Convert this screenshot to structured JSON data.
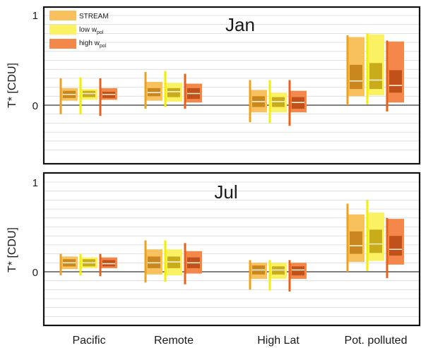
{
  "chart_data": {
    "type": "box",
    "categories": [
      "Pacific",
      "Remote",
      "High Lat",
      "Pot. polluted"
    ],
    "ylabel": "T* [CDU]",
    "ylim": [
      -0.5,
      1.0
    ],
    "yticks": [
      0,
      1
    ],
    "minor_grid_step": 0.1,
    "legend": {
      "placement": "top-left",
      "entries": [
        {
          "key": "stream",
          "label": "STREAM",
          "sub": ""
        },
        {
          "key": "low",
          "label": "low w",
          "sub": "pol"
        },
        {
          "key": "high",
          "label": "high w",
          "sub": "pol"
        }
      ]
    },
    "colors": {
      "stream": {
        "outer": "#f9c15e",
        "inner": "#c9871e",
        "whisker": "#eda21f"
      },
      "low": {
        "outer": "#fbf263",
        "inner": "#c9ac1a",
        "whisker": "#f2ee05"
      },
      "high": {
        "outer": "#f3884a",
        "inner": "#c0511a",
        "whisker": "#ea6019"
      },
      "median": "#f6f0d8",
      "zero_line": "#333333",
      "grid": "#d9d9d9"
    },
    "panels": [
      {
        "title": "Jan",
        "series": [
          {
            "key": "stream",
            "boxes": [
              {
                "min": -0.1,
                "p10": 0.05,
                "q1": 0.08,
                "median": 0.12,
                "q3": 0.16,
                "p90": 0.19,
                "max": 0.3
              },
              {
                "min": -0.04,
                "p10": 0.05,
                "q1": 0.1,
                "median": 0.14,
                "q3": 0.19,
                "p90": 0.26,
                "max": 0.37
              },
              {
                "min": -0.19,
                "p10": -0.08,
                "q1": -0.02,
                "median": 0.04,
                "q3": 0.1,
                "p90": 0.17,
                "max": 0.28
              },
              {
                "min": 0.0,
                "p10": 0.1,
                "q1": 0.18,
                "median": 0.27,
                "q3": 0.45,
                "p90": 0.76,
                "max": 0.78
              }
            ]
          },
          {
            "key": "low",
            "boxes": [
              {
                "min": -0.1,
                "p10": 0.06,
                "q1": 0.09,
                "median": 0.13,
                "q3": 0.16,
                "p90": 0.18,
                "max": 0.31
              },
              {
                "min": -0.02,
                "p10": 0.04,
                "q1": 0.09,
                "median": 0.15,
                "q3": 0.19,
                "p90": 0.25,
                "max": 0.38
              },
              {
                "min": -0.2,
                "p10": -0.08,
                "q1": -0.02,
                "median": 0.04,
                "q3": 0.09,
                "p90": 0.14,
                "max": 0.28
              },
              {
                "min": 0.01,
                "p10": 0.11,
                "q1": 0.18,
                "median": 0.28,
                "q3": 0.47,
                "p90": 0.79,
                "max": 0.8
              }
            ]
          },
          {
            "key": "high",
            "boxes": [
              {
                "min": -0.12,
                "p10": 0.06,
                "q1": 0.08,
                "median": 0.12,
                "q3": 0.15,
                "p90": 0.19,
                "max": 0.3
              },
              {
                "min": -0.04,
                "p10": 0.03,
                "q1": 0.07,
                "median": 0.13,
                "q3": 0.19,
                "p90": 0.24,
                "max": 0.35
              },
              {
                "min": -0.23,
                "p10": -0.08,
                "q1": -0.04,
                "median": 0.03,
                "q3": 0.09,
                "p90": 0.16,
                "max": 0.28
              },
              {
                "min": -0.07,
                "p10": 0.03,
                "q1": 0.14,
                "median": 0.22,
                "q3": 0.39,
                "p90": 0.71,
                "max": 0.72
              }
            ]
          }
        ]
      },
      {
        "title": "Jul",
        "series": [
          {
            "key": "stream",
            "boxes": [
              {
                "min": -0.04,
                "p10": 0.03,
                "q1": 0.06,
                "median": 0.1,
                "q3": 0.14,
                "p90": 0.17,
                "max": 0.2
              },
              {
                "min": -0.12,
                "p10": -0.03,
                "q1": 0.04,
                "median": 0.1,
                "q3": 0.17,
                "p90": 0.25,
                "max": 0.35
              },
              {
                "min": -0.2,
                "p10": -0.08,
                "q1": -0.03,
                "median": 0.02,
                "q3": 0.07,
                "p90": 0.1,
                "max": 0.13
              },
              {
                "min": 0.0,
                "p10": 0.11,
                "q1": 0.2,
                "median": 0.29,
                "q3": 0.45,
                "p90": 0.64,
                "max": 0.76
              }
            ]
          },
          {
            "key": "low",
            "boxes": [
              {
                "min": -0.04,
                "p10": 0.04,
                "q1": 0.06,
                "median": 0.1,
                "q3": 0.14,
                "p90": 0.16,
                "max": 0.2
              },
              {
                "min": -0.11,
                "p10": -0.04,
                "q1": 0.04,
                "median": 0.11,
                "q3": 0.17,
                "p90": 0.25,
                "max": 0.35
              },
              {
                "min": -0.21,
                "p10": -0.08,
                "q1": -0.03,
                "median": 0.02,
                "q3": 0.06,
                "p90": 0.1,
                "max": 0.13
              },
              {
                "min": 0.01,
                "p10": 0.12,
                "q1": 0.21,
                "median": 0.31,
                "q3": 0.47,
                "p90": 0.66,
                "max": 0.8
              }
            ]
          },
          {
            "key": "high",
            "boxes": [
              {
                "min": -0.05,
                "p10": 0.04,
                "q1": 0.06,
                "median": 0.09,
                "q3": 0.13,
                "p90": 0.16,
                "max": 0.2
              },
              {
                "min": -0.14,
                "p10": -0.02,
                "q1": 0.04,
                "median": 0.1,
                "q3": 0.16,
                "p90": 0.23,
                "max": 0.32
              },
              {
                "min": -0.22,
                "p10": -0.08,
                "q1": -0.04,
                "median": 0.02,
                "q3": 0.06,
                "p90": 0.1,
                "max": 0.13
              },
              {
                "min": -0.07,
                "p10": 0.08,
                "q1": 0.18,
                "median": 0.25,
                "q3": 0.4,
                "p90": 0.59,
                "max": 0.6
              }
            ]
          }
        ]
      }
    ]
  }
}
